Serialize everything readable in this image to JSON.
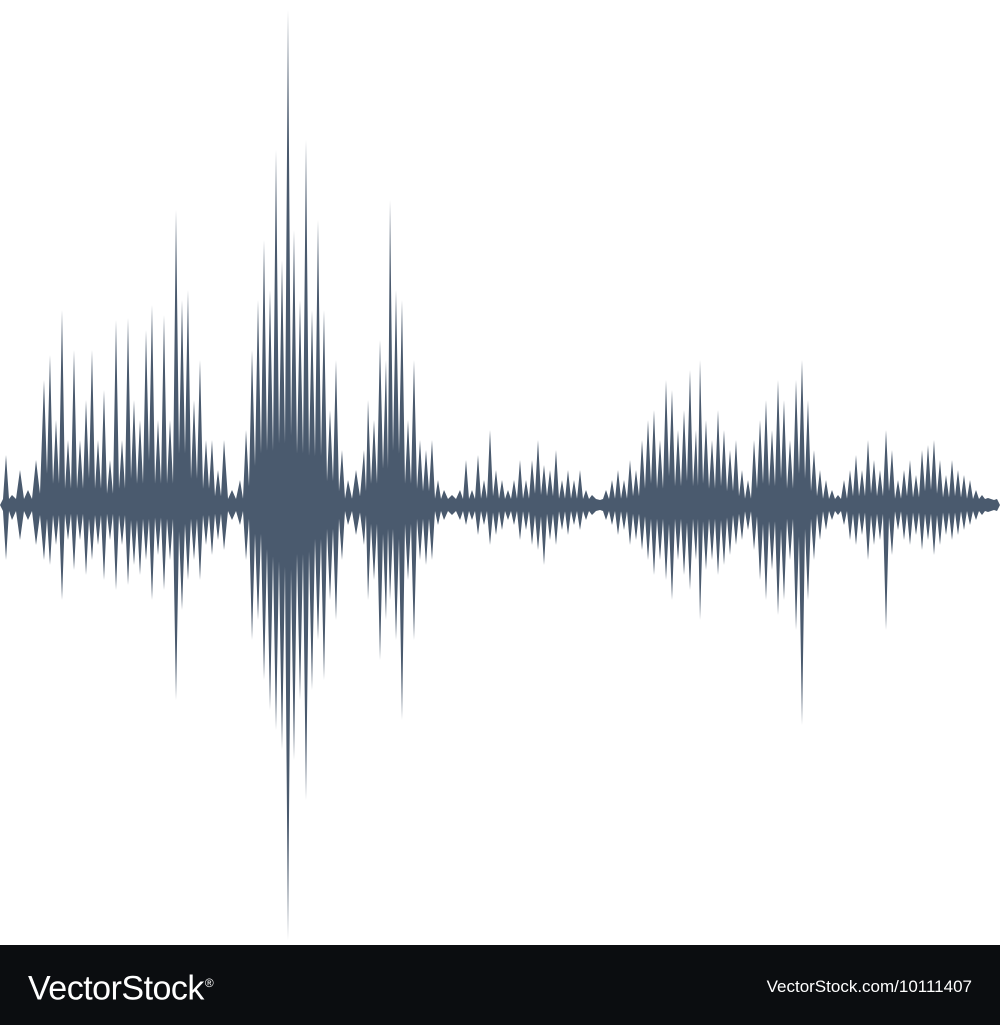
{
  "waveform": {
    "color": "#4a5a6e",
    "background": "#ffffff"
  },
  "footer": {
    "background": "#0b0d10",
    "brand_main": "VectorStock",
    "brand_mark": "®",
    "image_id": "VectorStock.com/10111407"
  }
}
